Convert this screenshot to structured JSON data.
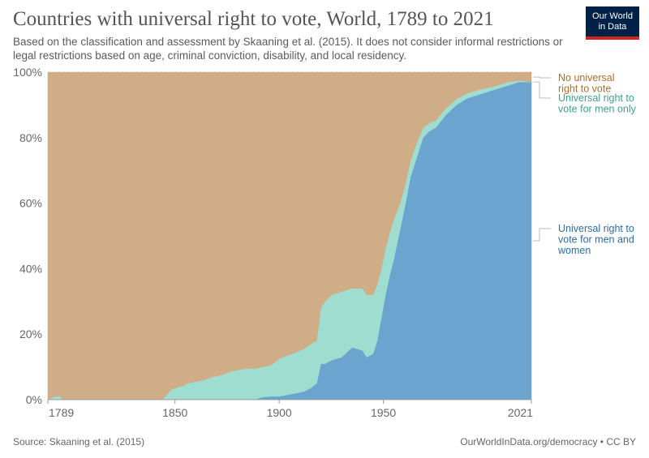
{
  "header": {
    "title": "Countries with universal right to vote, World, 1789 to 2021",
    "subtitle": "Based on the classification and assessment by Skaaning et al. (2015). It does not consider informal restrictions or legal restrictions based on age, criminal conviction, disability, and local residency."
  },
  "logo": {
    "line1": "Our World",
    "line2": "in Data"
  },
  "footer": {
    "source": "Source: Skaaning et al. (2015)",
    "credit": "OurWorldInData.org/democracy • CC BY"
  },
  "colors": {
    "none": "#cfad87",
    "men_only": "#9fddd1",
    "men_women": "#6aa4cf",
    "legend_none": "#a8702d",
    "legend_men_only": "#3f9f8d",
    "legend_men_women": "#2b6ea8"
  },
  "chart_data": {
    "type": "area",
    "stacked": true,
    "xlim": [
      1789,
      2021
    ],
    "ylim": [
      0,
      100
    ],
    "x_ticks": [
      1789,
      1850,
      1900,
      1950,
      2021
    ],
    "y_ticks": [
      0,
      20,
      40,
      60,
      80,
      100
    ],
    "y_tick_labels": [
      "0%",
      "20%",
      "40%",
      "60%",
      "80%",
      "100%"
    ],
    "legend_position": "right",
    "x": [
      1789,
      1792,
      1793,
      1795,
      1796,
      1844,
      1846,
      1848,
      1852,
      1854,
      1856,
      1860,
      1864,
      1868,
      1872,
      1876,
      1880,
      1884,
      1888,
      1892,
      1896,
      1900,
      1904,
      1908,
      1912,
      1915,
      1918,
      1920,
      1922,
      1925,
      1930,
      1935,
      1940,
      1942,
      1945,
      1947,
      1949,
      1951,
      1953,
      1955,
      1958,
      1960,
      1963,
      1966,
      1969,
      1972,
      1975,
      1980,
      1985,
      1990,
      1995,
      2000,
      2005,
      2010,
      2015,
      2021
    ],
    "series": [
      {
        "name": "Universal right to vote for men and women",
        "values": [
          0,
          0,
          0,
          0,
          0,
          0,
          0,
          0,
          0,
          0,
          0,
          0,
          0,
          0,
          0,
          0,
          0,
          0,
          0,
          0.8,
          1,
          1,
          1.5,
          2,
          2.5,
          3.5,
          5,
          11,
          11,
          12,
          13,
          16,
          15,
          13,
          14,
          18,
          25,
          32,
          38,
          43,
          52,
          58,
          68,
          74,
          80,
          82,
          83,
          87,
          90,
          92,
          93,
          94,
          95,
          96,
          97,
          97
        ]
      },
      {
        "name": "Universal right to vote for men only",
        "values": [
          0,
          1,
          1,
          1,
          0,
          0,
          1.5,
          3,
          4,
          4.2,
          5,
          5.5,
          6,
          7,
          7.5,
          8.5,
          9,
          9.5,
          9.5,
          9.2,
          9.5,
          11.5,
          12,
          12.5,
          13,
          13.5,
          13,
          17,
          19,
          20,
          20,
          18,
          19,
          19,
          18,
          17,
          15,
          14,
          13,
          12,
          8,
          6.5,
          5,
          4.5,
          3,
          2.5,
          2.2,
          2,
          1.8,
          1.5,
          1.5,
          1.2,
          1,
          1,
          0.5,
          0
        ]
      },
      {
        "name": "No universal right to vote",
        "values": [
          100,
          99,
          99,
          99,
          100,
          100,
          98.5,
          97,
          96,
          95.8,
          95,
          94.5,
          94,
          93,
          92.5,
          91.5,
          91,
          90.5,
          90.5,
          90,
          89.5,
          87.5,
          86.5,
          85.5,
          84.5,
          83,
          82,
          72,
          70,
          68,
          67,
          66,
          66,
          68,
          68,
          65,
          60,
          54,
          49,
          45,
          40,
          35.5,
          27,
          21.5,
          17,
          15.5,
          14.8,
          11,
          8.2,
          6.5,
          5.5,
          4.8,
          4,
          3,
          2.5,
          3
        ]
      }
    ],
    "legend": [
      {
        "lines": [
          "No universal",
          "right to vote"
        ]
      },
      {
        "lines": [
          "Universal right to",
          "vote for men only"
        ]
      },
      {
        "lines": [
          "Universal right to",
          "vote for men and",
          "women"
        ]
      }
    ]
  }
}
